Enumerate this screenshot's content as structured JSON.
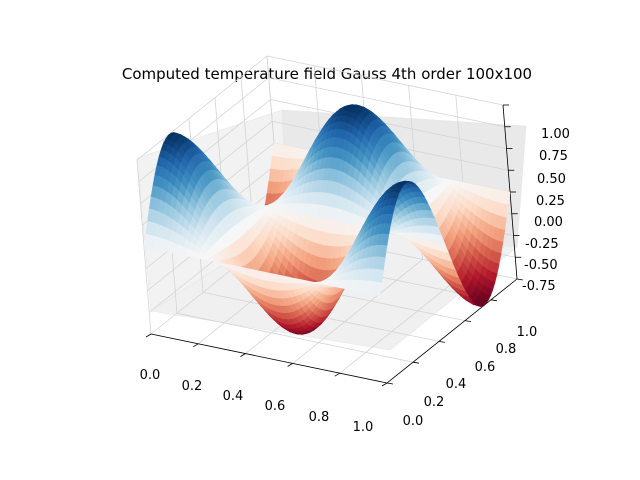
{
  "chart_data": {
    "type": "surface3d",
    "title": "Computed temperature field Gauss 4th order 100x100",
    "colormap": "RdBu",
    "function": "cos(2*pi*x) * sin(2*pi*y)",
    "grid_resolution": 100,
    "xlim": [
      0.0,
      1.0
    ],
    "ylim": [
      0.0,
      1.0
    ],
    "zlim": [
      -1.0,
      1.0
    ],
    "x_ticks": [
      "0.0",
      "0.2",
      "0.4",
      "0.6",
      "0.8",
      "1.0"
    ],
    "y_ticks": [
      "0.0",
      "0.2",
      "0.4",
      "0.6",
      "0.8",
      "1.0"
    ],
    "z_ticks": [
      "1.00",
      "0.75",
      "0.50",
      "0.25",
      "0.00",
      "-0.25",
      "-0.50",
      "-0.75"
    ],
    "grid": true,
    "colors": {
      "low": "#67001f",
      "mid": "#f7f7f7",
      "high": "#053061"
    }
  }
}
